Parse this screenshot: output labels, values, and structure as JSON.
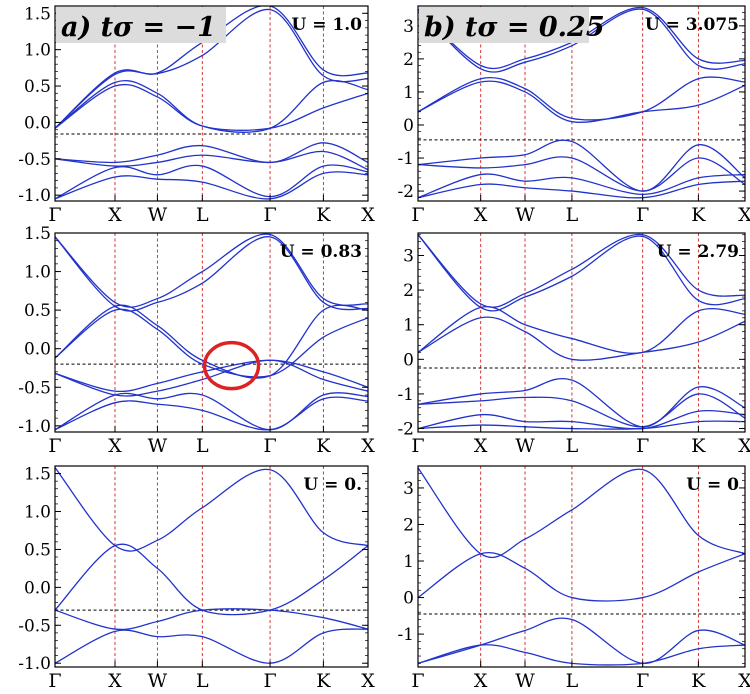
{
  "figure": {
    "column_titles": [
      "a) tσ = −1",
      "b) tσ = 0.25"
    ],
    "colors": {
      "band": "#2233cc",
      "kline": "#cc2222",
      "fermi": "#000000",
      "highlight": "#dd2222",
      "title_box": "#dcdcdc"
    }
  },
  "chart_data": [
    {
      "type": "line",
      "panel": "a-top",
      "annotation": "U = 1.0",
      "x_ticks": [
        "Γ",
        "X",
        "W",
        "L",
        "Γ",
        "K",
        "X"
      ],
      "y_ticks": [
        "-1.0",
        "-0.5",
        "0.0",
        "0.5",
        "1.0",
        "1.5"
      ],
      "ylim": [
        -1.08,
        1.6
      ],
      "fermi_level": -0.16,
      "series": [
        {
          "y": [
            -0.08,
            0.68,
            0.68,
            1.1,
            1.6,
            0.72,
            0.68
          ]
        },
        {
          "y": [
            -0.08,
            0.66,
            0.67,
            0.92,
            1.55,
            0.64,
            0.6
          ]
        },
        {
          "y": [
            -0.08,
            0.55,
            0.4,
            -0.05,
            -0.08,
            0.55,
            0.45
          ]
        },
        {
          "y": [
            -0.08,
            0.5,
            0.35,
            -0.05,
            -0.08,
            0.2,
            0.4
          ]
        },
        {
          "y": [
            -0.5,
            -0.55,
            -0.45,
            -0.32,
            -0.55,
            -0.28,
            -0.55
          ]
        },
        {
          "y": [
            -0.5,
            -0.6,
            -0.55,
            -0.45,
            -0.55,
            -0.4,
            -0.65
          ]
        },
        {
          "y": [
            -1.05,
            -0.62,
            -0.72,
            -0.6,
            -1.02,
            -0.6,
            -0.68
          ]
        },
        {
          "y": [
            -1.05,
            -0.75,
            -0.78,
            -0.82,
            -1.05,
            -0.7,
            -0.72
          ]
        }
      ]
    },
    {
      "type": "line",
      "panel": "b-top",
      "annotation": "U = 3.075",
      "x_ticks": [
        "Γ",
        "X",
        "W",
        "L",
        "Γ",
        "K",
        "X"
      ],
      "y_ticks": [
        "-2",
        "-1",
        "0",
        "1",
        "2",
        "3"
      ],
      "ylim": [
        -2.3,
        3.6
      ],
      "fermi_level": -0.45,
      "series": [
        {
          "y": [
            3.5,
            1.8,
            2.0,
            2.5,
            3.55,
            2.0,
            1.95
          ]
        },
        {
          "y": [
            3.5,
            1.7,
            1.9,
            2.4,
            3.5,
            1.8,
            1.85
          ]
        },
        {
          "y": [
            0.4,
            1.4,
            1.1,
            0.2,
            0.4,
            1.4,
            1.3
          ]
        },
        {
          "y": [
            0.4,
            1.3,
            1.0,
            0.1,
            0.4,
            0.6,
            1.2
          ]
        },
        {
          "y": [
            -1.2,
            -1.0,
            -0.9,
            -0.5,
            -2.0,
            -0.6,
            -1.6
          ]
        },
        {
          "y": [
            -1.2,
            -1.3,
            -1.2,
            -1.0,
            -2.0,
            -1.0,
            -1.8
          ]
        },
        {
          "y": [
            -2.2,
            -1.5,
            -1.7,
            -1.6,
            -2.1,
            -1.6,
            -1.5
          ]
        },
        {
          "y": [
            -2.2,
            -1.8,
            -1.9,
            -2.0,
            -2.2,
            -1.8,
            -1.7
          ]
        }
      ]
    },
    {
      "type": "line",
      "panel": "a-middle",
      "annotation": "U = 0.83",
      "x_ticks": [
        "Γ",
        "X",
        "W",
        "L",
        "Γ",
        "K",
        "X"
      ],
      "y_ticks": [
        "-1.0",
        "-0.5",
        "0.0",
        "0.5",
        "1.0",
        "1.5"
      ],
      "ylim": [
        -1.08,
        1.5
      ],
      "fermi_level": -0.2,
      "series": [
        {
          "y": [
            1.45,
            0.6,
            0.65,
            1.0,
            1.48,
            0.65,
            0.58
          ]
        },
        {
          "y": [
            1.45,
            0.55,
            0.6,
            0.85,
            1.45,
            0.6,
            0.52
          ]
        },
        {
          "y": [
            -0.12,
            0.55,
            0.3,
            -0.15,
            -0.35,
            0.5,
            0.5
          ]
        },
        {
          "y": [
            -0.12,
            0.5,
            0.25,
            -0.2,
            -0.35,
            0.15,
            0.4
          ]
        },
        {
          "y": [
            -0.32,
            -0.55,
            -0.45,
            -0.3,
            -0.15,
            -0.3,
            -0.5
          ]
        },
        {
          "y": [
            -0.32,
            -0.6,
            -0.55,
            -0.4,
            -0.15,
            -0.4,
            -0.55
          ]
        },
        {
          "y": [
            -1.05,
            -0.6,
            -0.65,
            -0.6,
            -1.05,
            -0.6,
            -0.62
          ]
        },
        {
          "y": [
            -1.05,
            -0.7,
            -0.72,
            -0.8,
            -1.05,
            -0.65,
            -0.68
          ]
        }
      ]
    },
    {
      "type": "line",
      "panel": "b-middle",
      "annotation": "U = 2.79",
      "x_ticks": [
        "Γ",
        "X",
        "W",
        "L",
        "Γ",
        "K",
        "X"
      ],
      "y_ticks": [
        "-2",
        "-1",
        "0",
        "1",
        "2",
        "3"
      ],
      "ylim": [
        -2.1,
        3.65
      ],
      "fermi_level": -0.25,
      "series": [
        {
          "y": [
            3.6,
            1.6,
            1.9,
            2.6,
            3.6,
            2.0,
            1.85
          ]
        },
        {
          "y": [
            3.6,
            1.5,
            1.8,
            2.4,
            3.55,
            1.7,
            1.75
          ]
        },
        {
          "y": [
            0.2,
            1.5,
            1.0,
            0.6,
            0.2,
            1.4,
            1.3
          ]
        },
        {
          "y": [
            0.2,
            1.2,
            0.8,
            0.0,
            0.2,
            0.5,
            1.1
          ]
        },
        {
          "y": [
            -1.3,
            -1.0,
            -0.9,
            -0.6,
            -1.95,
            -0.8,
            -1.4
          ]
        },
        {
          "y": [
            -1.3,
            -1.2,
            -1.1,
            -1.2,
            -1.95,
            -1.0,
            -1.7
          ]
        },
        {
          "y": [
            -2.0,
            -1.6,
            -1.8,
            -1.8,
            -2.0,
            -1.5,
            -1.6
          ]
        },
        {
          "y": [
            -2.0,
            -1.9,
            -1.95,
            -2.0,
            -2.0,
            -1.8,
            -1.8
          ]
        }
      ]
    },
    {
      "type": "line",
      "panel": "a-bottom",
      "annotation": "U = 0.",
      "x_ticks": [
        "Γ",
        "X",
        "W",
        "L",
        "Γ",
        "K",
        "X"
      ],
      "y_ticks": [
        "-1.0",
        "-0.5",
        "0.0",
        "0.5",
        "1.0",
        "1.5"
      ],
      "ylim": [
        -1.05,
        1.6
      ],
      "fermi_level": -0.3,
      "series": [
        {
          "y": [
            1.58,
            0.55,
            0.62,
            1.05,
            1.55,
            0.72,
            0.55
          ]
        },
        {
          "y": [
            -0.3,
            0.55,
            0.25,
            -0.3,
            -0.3,
            0.1,
            0.55
          ]
        },
        {
          "y": [
            -0.3,
            -0.55,
            -0.45,
            -0.3,
            -0.3,
            -0.4,
            -0.55
          ]
        },
        {
          "y": [
            -1.0,
            -0.58,
            -0.65,
            -0.65,
            -1.0,
            -0.6,
            -0.55
          ]
        }
      ]
    },
    {
      "type": "line",
      "panel": "b-bottom",
      "annotation": "U = 0",
      "x_ticks": [
        "Γ",
        "X",
        "W",
        "L",
        "Γ",
        "K",
        "X"
      ],
      "y_ticks": [
        "-1",
        "0",
        "1",
        "2",
        "3"
      ],
      "ylim": [
        -1.9,
        3.6
      ],
      "fermi_level": -0.45,
      "series": [
        {
          "y": [
            3.55,
            1.2,
            1.6,
            2.4,
            3.5,
            1.7,
            1.2
          ]
        },
        {
          "y": [
            0.0,
            1.2,
            0.8,
            0.0,
            0.0,
            0.7,
            1.2
          ]
        },
        {
          "y": [
            -1.8,
            -1.3,
            -0.9,
            -0.6,
            -1.8,
            -0.9,
            -1.3
          ]
        },
        {
          "y": [
            -1.8,
            -1.3,
            -1.5,
            -1.8,
            -1.8,
            -1.4,
            -1.3
          ]
        }
      ]
    }
  ]
}
